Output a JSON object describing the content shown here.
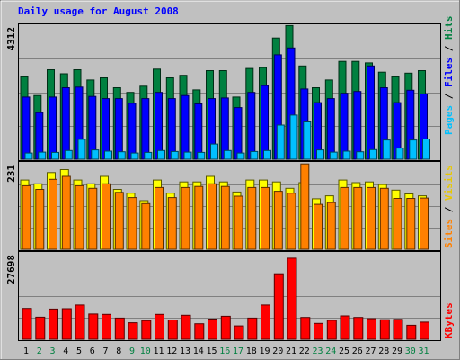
{
  "chart_data": {
    "type": "bar",
    "title": "Daily usage for August 2008",
    "x": [
      1,
      2,
      3,
      4,
      5,
      6,
      7,
      8,
      9,
      10,
      11,
      12,
      13,
      14,
      15,
      16,
      17,
      18,
      19,
      20,
      21,
      22,
      23,
      24,
      25,
      26,
      27,
      28,
      29,
      30,
      31
    ],
    "weekend_days": [
      2,
      3,
      9,
      10,
      16,
      17,
      23,
      24,
      30,
      31
    ],
    "panels": [
      {
        "name": "hits-files-pages",
        "ymax_label": "4312",
        "ylim": [
          0,
          4312
        ],
        "legend": [
          "Pages",
          "Files",
          "Hits"
        ],
        "series": [
          {
            "name": "Hits",
            "color": "#008040",
            "values": [
              2650,
              2050,
              2880,
              2750,
              2880,
              2550,
              2620,
              2300,
              2150,
              2350,
              2900,
              2620,
              2700,
              2230,
              2850,
              2850,
              2000,
              2920,
              2950,
              3900,
              4300,
              3000,
              2300,
              2550,
              3150,
              3150,
              3100,
              2800,
              2650,
              2770,
              2850
            ]
          },
          {
            "name": "Files",
            "color": "#0000ff",
            "values": [
              2000,
              1500,
              2000,
              2300,
              2320,
              2020,
              1950,
              1950,
              1800,
              1950,
              2150,
              1950,
              2050,
              1780,
              1950,
              1970,
              1660,
              2150,
              2370,
              3360,
              3580,
              2260,
              1820,
              1950,
              2120,
              2180,
              3000,
              2300,
              1820,
              2220,
              2100
            ]
          },
          {
            "name": "Pages",
            "color": "#00c0ff",
            "values": [
              200,
              230,
              220,
              280,
              640,
              300,
              260,
              240,
              200,
              220,
              280,
              250,
              230,
              220,
              490,
              280,
              200,
              250,
              280,
              1100,
              1420,
              1200,
              300,
              230,
              260,
              240,
              310,
              620,
              360,
              620,
              650
            ]
          }
        ]
      },
      {
        "name": "visits-sites",
        "ymax_label": "231",
        "ylim": [
          0,
          231
        ],
        "legend": [
          "Sites",
          "Visits"
        ],
        "series": [
          {
            "name": "Visits",
            "color": "#ffff00",
            "values": [
              185,
              175,
              205,
              213,
              185,
              175,
              195,
              160,
              150,
              130,
              185,
              150,
              180,
              180,
              195,
              180,
              153,
              185,
              185,
              180,
              163,
              178,
              135,
              143,
              185,
              178,
              180,
              173,
              158,
              148,
              143
            ]
          },
          {
            "name": "Sites",
            "color": "#ff8000",
            "values": [
              170,
              160,
              187,
              195,
              170,
              163,
              175,
              152,
              138,
              122,
              165,
              138,
              165,
              168,
              175,
              168,
              142,
              165,
              165,
              155,
              150,
              228,
              120,
              125,
              165,
              165,
              165,
              163,
              136,
              136,
              137
            ]
          }
        ]
      },
      {
        "name": "kbytes",
        "ymax_label": "27698",
        "ylim": [
          0,
          27698
        ],
        "legend": [
          "KBytes"
        ],
        "series": [
          {
            "name": "KBytes",
            "color": "#ff0000",
            "values": [
              9900,
              7100,
              9700,
              9800,
              11000,
              8100,
              8000,
              6800,
              5300,
              6000,
              8000,
              6200,
              7700,
              5000,
              6500,
              7400,
              4300,
              6800,
              11000,
              21000,
              26000,
              7000,
              5100,
              6100,
              7500,
              7000,
              6600,
              6300,
              6400,
              4500,
              5500
            ]
          }
        ]
      }
    ]
  }
}
